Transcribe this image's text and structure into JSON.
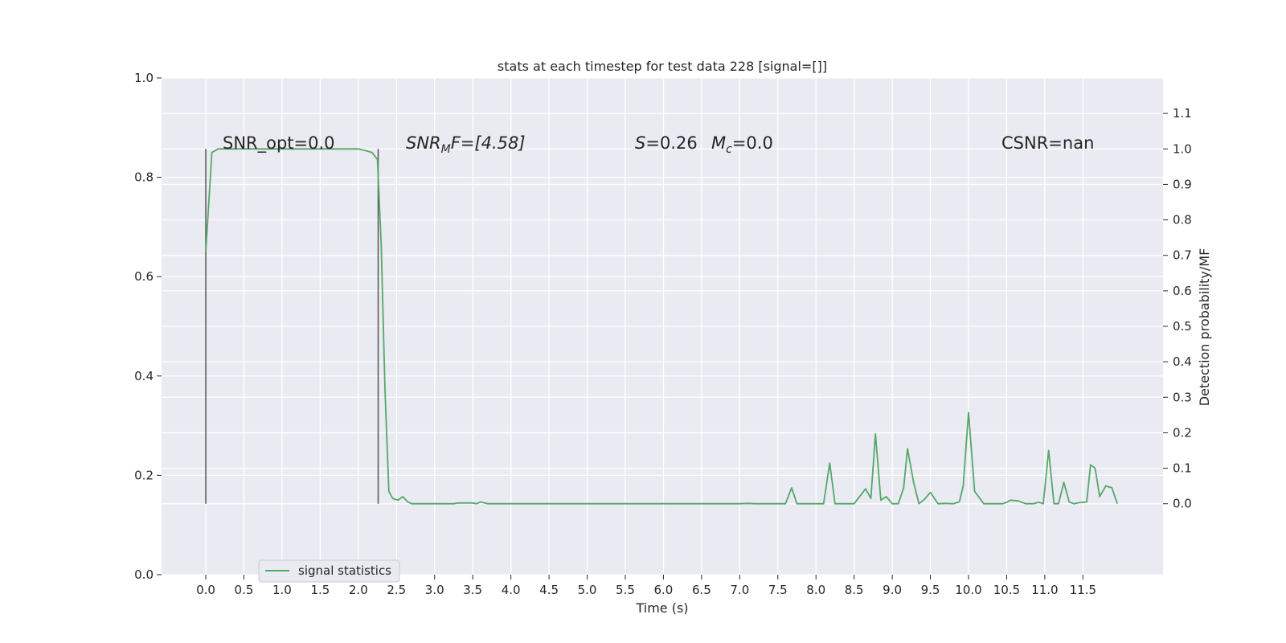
{
  "chart_data": {
    "type": "line",
    "title": "stats at each timestep for test data 228 [signal=[]]",
    "xlabel": "Time (s)",
    "ylabel_left": "",
    "ylabel_right": "Detection probability/MF",
    "xlim": [
      -0.58,
      12.55
    ],
    "ylim_left": [
      0.0,
      1.0
    ],
    "ylim_right": [
      -0.2,
      1.2
    ],
    "x_ticks": [
      "0.0",
      "0.5",
      "1.0",
      "1.5",
      "2.0",
      "2.5",
      "3.0",
      "3.5",
      "4.0",
      "4.5",
      "5.0",
      "5.5",
      "6.0",
      "6.5",
      "7.0",
      "7.5",
      "8.0",
      "8.5",
      "9.0",
      "9.5",
      "10.0",
      "10.5",
      "11.0",
      "11.5"
    ],
    "y_ticks_left": [
      "0.0",
      "0.2",
      "0.4",
      "0.6",
      "0.8",
      "1.0"
    ],
    "y_ticks_right": [
      "0.0",
      "0.1",
      "0.2",
      "0.3",
      "0.4",
      "0.5",
      "0.6",
      "0.7",
      "0.8",
      "0.9",
      "1.0",
      "1.1"
    ],
    "grid": true,
    "legend_position": "lower-left",
    "vlines": [
      {
        "x": 0.0,
        "y_from": 0.0,
        "y_to": 1.0,
        "color": "#555555"
      },
      {
        "x": 2.26,
        "y_from": 0.0,
        "y_to": 1.0,
        "color": "#555555"
      }
    ],
    "annotations": {
      "snr_opt": "SNR_opt=0.0",
      "snr_mf_prefix": "SNR",
      "snr_mf_sub": "M",
      "snr_mf_suffix": "F=[4.58]",
      "s_var": "S",
      "s_val": "=0.26",
      "mc_var": "M",
      "mc_sub": "c",
      "mc_val": "=0.0",
      "csnr": "CSNR=nan"
    },
    "series": [
      {
        "name": "signal statistics",
        "color": "#55a868",
        "x": [
          0.0,
          0.08,
          0.16,
          0.25,
          0.5,
          0.75,
          1.0,
          1.25,
          1.5,
          1.75,
          2.0,
          2.1,
          2.18,
          2.25,
          2.3,
          2.35,
          2.4,
          2.45,
          2.52,
          2.58,
          2.65,
          2.7,
          2.8,
          3.0,
          3.25,
          3.3,
          3.5,
          3.55,
          3.6,
          3.7,
          4.0,
          5.0,
          6.0,
          7.0,
          7.1,
          7.2,
          7.5,
          7.6,
          7.68,
          7.75,
          8.0,
          8.1,
          8.18,
          8.25,
          8.5,
          8.65,
          8.72,
          8.78,
          8.85,
          8.92,
          9.0,
          9.08,
          9.15,
          9.2,
          9.28,
          9.35,
          9.42,
          9.5,
          9.6,
          9.7,
          9.8,
          9.88,
          9.93,
          10.0,
          10.08,
          10.2,
          10.3,
          10.45,
          10.5,
          10.55,
          10.65,
          10.75,
          10.85,
          10.92,
          10.98,
          11.05,
          11.12,
          11.18,
          11.25,
          11.32,
          11.38,
          11.45,
          11.5,
          11.55,
          11.6,
          11.66,
          11.72,
          11.8,
          11.88,
          11.95
        ],
        "values": [
          0.71,
          0.99,
          1.0,
          1.0,
          1.0,
          1.0,
          1.0,
          1.0,
          1.0,
          1.0,
          1.0,
          0.995,
          0.99,
          0.97,
          0.73,
          0.32,
          0.035,
          0.015,
          0.01,
          0.02,
          0.005,
          0.0,
          0.0,
          0.0,
          0.0,
          0.002,
          0.002,
          0.0,
          0.005,
          0.0,
          0.0,
          0.0,
          0.0,
          0.0,
          0.001,
          0.0,
          0.0,
          0.0,
          0.045,
          0.0,
          0.0,
          0.0,
          0.115,
          0.0,
          0.0,
          0.042,
          0.015,
          0.197,
          0.01,
          0.02,
          0.0,
          0.0,
          0.045,
          0.155,
          0.06,
          0.0,
          0.012,
          0.032,
          0.0,
          0.001,
          0.0,
          0.005,
          0.05,
          0.257,
          0.035,
          0.0,
          0.0,
          0.0,
          0.004,
          0.01,
          0.008,
          0.0,
          0.0,
          0.004,
          0.0,
          0.15,
          0.0,
          0.0,
          0.06,
          0.005,
          0.0,
          0.003,
          0.004,
          0.005,
          0.11,
          0.1,
          0.02,
          0.05,
          0.045,
          0.0
        ]
      }
    ]
  }
}
